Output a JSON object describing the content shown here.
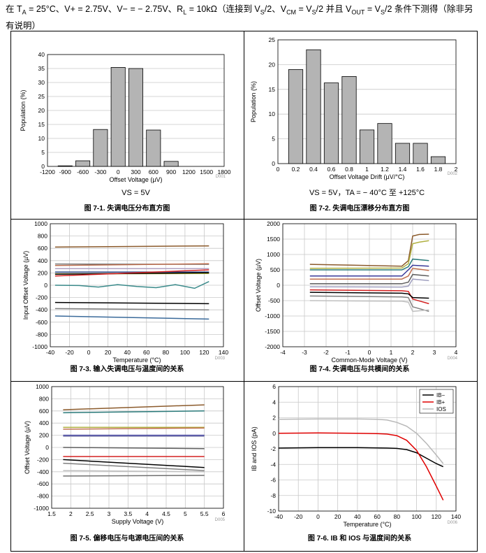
{
  "header": {
    "line1_prefix": "在 T",
    "ta_sub": "A",
    "line1_rest": " = 25°C、V+ = 2.75V、V− = − 2.75V、R",
    "rl_sub": "L",
    "line1_rest2": " = 10kΩ（连接到 V",
    "vs_sub": "S",
    "line1_rest3": "/2、V",
    "vcm_sub": "CM",
    "line1_rest4": " = V",
    "vs_sub2": "S",
    "line1_rest5": "/2 并且 V",
    "vout_sub": "OUT",
    "line1_rest6": " = V",
    "vs_sub3": "S",
    "line1_rest7": "/2 条件下测得（除非另",
    "line2": "有说明）"
  },
  "chart_data": [
    {
      "type": "bar",
      "id": "D001",
      "ylabel": "Population (%)",
      "xlabel": "Offset Voltage (µV)",
      "condition": "VS = 5V",
      "caption": "图 7-1. 失调电压分布直方图",
      "xticks": [
        "-1200",
        "-900",
        "-600",
        "-300",
        "0",
        "300",
        "600",
        "900",
        "1200",
        "1500",
        "1800"
      ],
      "xrange": [
        -1200,
        1800
      ],
      "ylim": [
        0,
        40
      ],
      "yticks": [
        "0",
        "5",
        "10",
        "15",
        "20",
        "25",
        "30",
        "35",
        "40"
      ],
      "bars": [
        {
          "x": -900,
          "value": 0.2
        },
        {
          "x": -600,
          "value": 2
        },
        {
          "x": -300,
          "value": 13.2
        },
        {
          "x": 0,
          "value": 35.4
        },
        {
          "x": 300,
          "value": 35
        },
        {
          "x": 600,
          "value": 13
        },
        {
          "x": 900,
          "value": 1.8
        }
      ],
      "bar_width": 240
    },
    {
      "type": "bar",
      "id": "D002",
      "ylabel": "Population (%)",
      "xlabel": "Offset Voltage Drift (µV/°C)",
      "condition": "VS = 5V，TA = − 40°C 至 +125°C",
      "caption": "图 7-2. 失调电压漂移分布直方图",
      "xticks": [
        "0",
        "0.2",
        "0.4",
        "0.6",
        "0.8",
        "1",
        "1.2",
        "1.4",
        "1.6",
        "1.8",
        "2"
      ],
      "xrange": [
        0,
        2
      ],
      "ylim": [
        0,
        25
      ],
      "yticks": [
        "0",
        "5",
        "10",
        "15",
        "20",
        "25"
      ],
      "bars": [
        {
          "x": 0.2,
          "value": 19
        },
        {
          "x": 0.4,
          "value": 23
        },
        {
          "x": 0.6,
          "value": 16.3
        },
        {
          "x": 0.8,
          "value": 17.6
        },
        {
          "x": 1.0,
          "value": 6.8
        },
        {
          "x": 1.2,
          "value": 8.1
        },
        {
          "x": 1.4,
          "value": 4.1
        },
        {
          "x": 1.6,
          "value": 4.1
        },
        {
          "x": 1.8,
          "value": 1.4
        }
      ],
      "bar_width": 0.16
    },
    {
      "type": "line",
      "id": "D003",
      "ylabel": "Input Offset Voltage (µV)",
      "xlabel": "Temperature (°C)",
      "caption": "图 7-3. 输入失调电压与温度间的关系",
      "xticks": [
        "-40",
        "-20",
        "0",
        "20",
        "40",
        "60",
        "80",
        "100",
        "120",
        "140"
      ],
      "xrange": [
        -40,
        140
      ],
      "ylim": [
        -1000,
        1000
      ],
      "yticks": [
        "-1000",
        "-800",
        "-600",
        "-400",
        "-200",
        "0",
        "200",
        "400",
        "600",
        "800",
        "1000"
      ],
      "series": [
        {
          "color": "#8b5a2b",
          "x": [
            -35,
            125
          ],
          "y": [
            620,
            640
          ]
        },
        {
          "color": "#7a7a7a",
          "x": [
            -35,
            125
          ],
          "y": [
            345,
            340
          ]
        },
        {
          "color": "#c07050",
          "x": [
            -35,
            125
          ],
          "y": [
            320,
            350
          ]
        },
        {
          "color": "#b0a0c0",
          "x": [
            -35,
            125
          ],
          "y": [
            270,
            270
          ]
        },
        {
          "color": "#2a4a8a",
          "x": [
            -35,
            125
          ],
          "y": [
            215,
            215
          ]
        },
        {
          "color": "#a0a030",
          "x": [
            -35,
            125
          ],
          "y": [
            185,
            190
          ]
        },
        {
          "color": "#000000",
          "x": [
            -35,
            125
          ],
          "y": [
            180,
            205
          ]
        },
        {
          "color": "#d42020",
          "x": [
            -35,
            125
          ],
          "y": [
            150,
            250
          ]
        },
        {
          "color": "#3a8a8a",
          "x": [
            -35,
            -10,
            10,
            30,
            50,
            70,
            90,
            110,
            125
          ],
          "y": [
            0,
            -5,
            -30,
            10,
            -20,
            -40,
            10,
            -50,
            60
          ]
        },
        {
          "color": "#000000",
          "x": [
            -35,
            125
          ],
          "y": [
            -280,
            -300
          ]
        },
        {
          "color": "#808080",
          "x": [
            -35,
            125
          ],
          "y": [
            -380,
            -400
          ]
        },
        {
          "color": "#3a6a9a",
          "x": [
            -35,
            125
          ],
          "y": [
            -500,
            -550
          ]
        }
      ]
    },
    {
      "type": "line",
      "id": "D004",
      "ylabel": "Offset Voltage (µV)",
      "xlabel": "Common-Mode Voltage (V)",
      "caption": "图 7-4. 失调电压与共模间的关系",
      "xticks": [
        "-4",
        "-3",
        "-2",
        "-1",
        "0",
        "1",
        "2",
        "3",
        "4"
      ],
      "xrange": [
        -4,
        4
      ],
      "ylim": [
        -2000,
        2000
      ],
      "yticks": [
        "-2000",
        "-1500",
        "-1000",
        "-500",
        "0",
        "500",
        "1000",
        "1500",
        "2000"
      ],
      "series": [
        {
          "color": "#8b5a2b",
          "x": [
            -2.75,
            1.5,
            1.8,
            2.0,
            2.3,
            2.75
          ],
          "y": [
            680,
            620,
            800,
            1600,
            1650,
            1660
          ]
        },
        {
          "color": "#b0b040",
          "x": [
            -2.75,
            1.5,
            1.8,
            2.0,
            2.3,
            2.75
          ],
          "y": [
            550,
            560,
            700,
            1350,
            1400,
            1450
          ]
        },
        {
          "color": "#2a7a7a",
          "x": [
            -2.75,
            1.5,
            1.8,
            2.0,
            2.75
          ],
          "y": [
            500,
            500,
            600,
            850,
            800
          ]
        },
        {
          "color": "#3a3a9a",
          "x": [
            -2.75,
            1.5,
            1.8,
            2.0,
            2.75
          ],
          "y": [
            300,
            300,
            500,
            650,
            620
          ]
        },
        {
          "color": "#c07050",
          "x": [
            -2.75,
            1.5,
            1.8,
            2.0,
            2.75
          ],
          "y": [
            200,
            200,
            300,
            550,
            480
          ]
        },
        {
          "color": "#606060",
          "x": [
            -2.75,
            1.5,
            1.8,
            2.0,
            2.75
          ],
          "y": [
            50,
            50,
            100,
            350,
            300
          ]
        },
        {
          "color": "#a0a0c0",
          "x": [
            -2.75,
            1.5,
            1.8,
            2.0,
            2.75
          ],
          "y": [
            -50,
            -60,
            -30,
            200,
            150
          ]
        },
        {
          "color": "#d42020",
          "x": [
            -2.75,
            1.5,
            1.8,
            2.0,
            2.75
          ],
          "y": [
            -150,
            -180,
            -200,
            -450,
            -600
          ]
        },
        {
          "color": "#000000",
          "x": [
            -2.75,
            1.5,
            1.8,
            2.0,
            2.75
          ],
          "y": [
            -230,
            -260,
            -280,
            -400,
            -420
          ]
        },
        {
          "color": "#808080",
          "x": [
            -2.75,
            1.5,
            1.8,
            2.0,
            2.75
          ],
          "y": [
            -350,
            -380,
            -400,
            -700,
            -850
          ]
        },
        {
          "color": "#c0c0c0",
          "x": [
            -2.75,
            1.5,
            1.8,
            2.0,
            2.75
          ],
          "y": [
            -500,
            -520,
            -550,
            -850,
            -800
          ]
        }
      ]
    },
    {
      "type": "line",
      "id": "D005",
      "ylabel": "Offset Voltage (µV)",
      "xlabel": "Supply Voltage (V)",
      "caption": "图 7-5. 偏移电压与电源电压间的关系",
      "xticks": [
        "1.5",
        "2",
        "2.5",
        "3",
        "3.5",
        "4",
        "4.5",
        "5",
        "5.5",
        "6"
      ],
      "xrange": [
        1.5,
        6
      ],
      "ylim": [
        -1000,
        1000
      ],
      "yticks": [
        "-1000",
        "-800",
        "-600",
        "-400",
        "-200",
        "0",
        "200",
        "400",
        "600",
        "800",
        "1000"
      ],
      "series": [
        {
          "color": "#8b5a2b",
          "x": [
            1.8,
            5.5
          ],
          "y": [
            620,
            700
          ]
        },
        {
          "color": "#2a7a7a",
          "x": [
            1.8,
            5.5
          ],
          "y": [
            570,
            600
          ]
        },
        {
          "color": "#b0b040",
          "x": [
            1.8,
            5.5
          ],
          "y": [
            330,
            330
          ]
        },
        {
          "color": "#c07050",
          "x": [
            1.8,
            5.5
          ],
          "y": [
            300,
            320
          ]
        },
        {
          "color": "#3a3a9a",
          "x": [
            1.8,
            5.5
          ],
          "y": [
            200,
            200
          ]
        },
        {
          "color": "#a0a0c0",
          "x": [
            1.8,
            5.5
          ],
          "y": [
            180,
            180
          ]
        },
        {
          "color": "#606060",
          "x": [
            1.8,
            5.5
          ],
          "y": [
            0,
            -20
          ]
        },
        {
          "color": "#d42020",
          "x": [
            1.8,
            5.5
          ],
          "y": [
            -150,
            -150
          ]
        },
        {
          "color": "#000000",
          "x": [
            1.8,
            5.5
          ],
          "y": [
            -200,
            -330
          ]
        },
        {
          "color": "#808080",
          "x": [
            1.8,
            5.5
          ],
          "y": [
            -260,
            -380
          ]
        },
        {
          "color": "#c0c0c0",
          "x": [
            1.8,
            5.5
          ],
          "y": [
            -380,
            -400
          ]
        },
        {
          "color": "#707070",
          "x": [
            1.8,
            5.5
          ],
          "y": [
            -470,
            -460
          ]
        }
      ]
    },
    {
      "type": "line",
      "id": "D006",
      "ylabel": "IB and IOS (pA)",
      "xlabel": "Temperature (°C)",
      "caption": "图 7-6. IB 和 IOS 与温度间的关系",
      "xticks": [
        "-40",
        "-20",
        "0",
        "20",
        "40",
        "60",
        "80",
        "100",
        "120",
        "140"
      ],
      "xrange": [
        -40,
        140
      ],
      "ylim": [
        -10,
        6
      ],
      "yticks": [
        "-10",
        "-8",
        "-6",
        "-4",
        "-2",
        "0",
        "2",
        "4",
        "6"
      ],
      "legend": [
        "IB−",
        "IB+",
        "IOS"
      ],
      "series": [
        {
          "name": "IB−",
          "color": "#000000",
          "x": [
            -40,
            0,
            40,
            70,
            80,
            90,
            100,
            110,
            120,
            127
          ],
          "y": [
            -1.9,
            -1.85,
            -1.85,
            -1.9,
            -1.95,
            -2.1,
            -2.5,
            -3.2,
            -3.9,
            -4.3
          ]
        },
        {
          "name": "IB+",
          "color": "#e00000",
          "x": [
            -40,
            0,
            40,
            60,
            70,
            80,
            90,
            100,
            110,
            120,
            127
          ],
          "y": [
            0,
            0.05,
            0,
            -0.05,
            -0.1,
            -0.3,
            -0.9,
            -2.2,
            -4.3,
            -6.8,
            -8.6
          ]
        },
        {
          "name": "IOS",
          "color": "#b8b8b8",
          "x": [
            -40,
            0,
            40,
            60,
            70,
            80,
            90,
            100,
            110,
            120,
            127
          ],
          "y": [
            1.8,
            1.85,
            1.85,
            1.8,
            1.7,
            1.4,
            0.9,
            0,
            -1.3,
            -2.8,
            -3.9
          ]
        }
      ]
    }
  ]
}
